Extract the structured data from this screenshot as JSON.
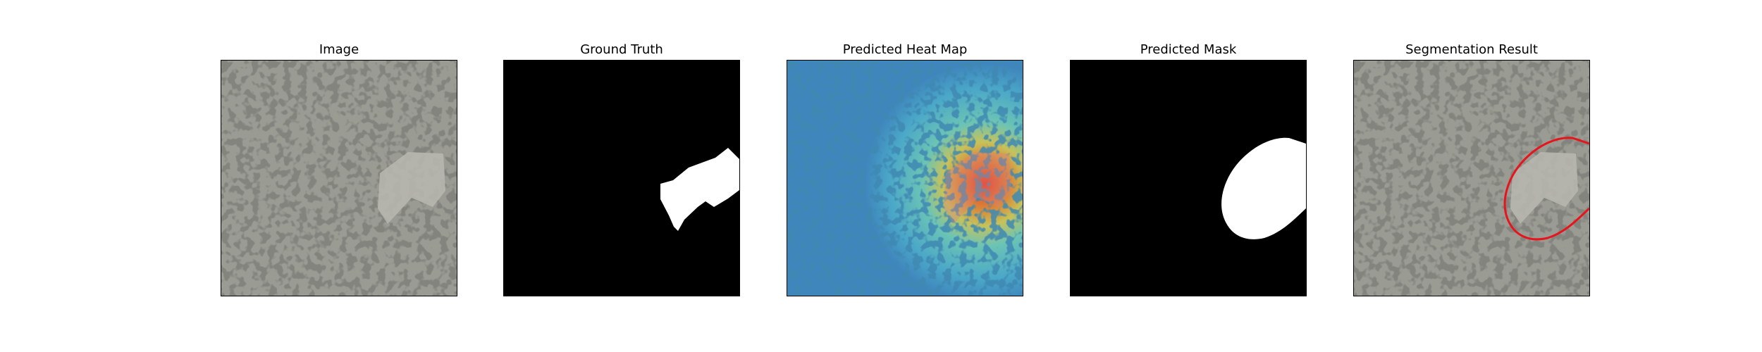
{
  "figure": {
    "panels": [
      {
        "id": "image",
        "title": "Image",
        "icon": "texture-photo"
      },
      {
        "id": "ground_truth",
        "title": "Ground Truth",
        "icon": "binary-mask"
      },
      {
        "id": "heatmap",
        "title": "Predicted Heat Map",
        "icon": "jet-heatmap"
      },
      {
        "id": "pred_mask",
        "title": "Predicted Mask",
        "icon": "binary-mask"
      },
      {
        "id": "segmentation",
        "title": "Segmentation Result",
        "icon": "contour-overlay"
      }
    ],
    "colors": {
      "mask_foreground": "#ffffff",
      "mask_background": "#000000",
      "contour": "#e8141c",
      "texture_light": "#9a9b93",
      "texture_dark": "#3a3b37"
    }
  }
}
